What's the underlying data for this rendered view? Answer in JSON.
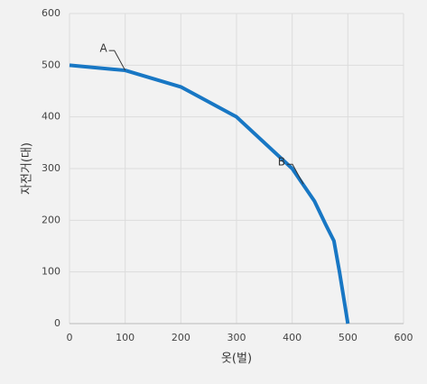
{
  "chart_data": {
    "type": "line",
    "x_label": "옷(벌)",
    "y_label": "자전거(대)",
    "x": [
      0,
      100,
      200,
      300,
      400,
      440,
      460,
      475,
      485,
      500
    ],
    "series": [
      {
        "color": "#1877c4",
        "values": [
          500,
          490,
          458,
          400,
          300,
          237,
          192,
          160,
          100,
          0
        ]
      }
    ],
    "xlim": [
      0,
      600
    ],
    "xticks": [
      0,
      100,
      200,
      300,
      400,
      500,
      600
    ],
    "ylim": [
      0,
      600
    ],
    "yticks": [
      0,
      100,
      200,
      300,
      400,
      500,
      600
    ],
    "grid": true,
    "annotations": [
      {
        "label": "A",
        "x": 100,
        "y": 490
      },
      {
        "label": "B",
        "x": 420,
        "y": 270
      }
    ]
  }
}
